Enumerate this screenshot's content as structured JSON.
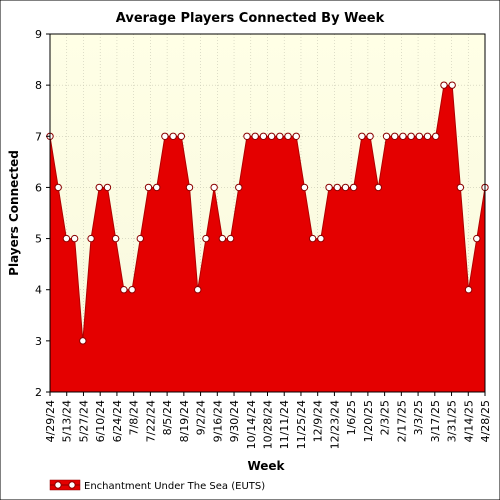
{
  "chart_data": {
    "type": "area",
    "title": "Average Players Connected By Week",
    "xlabel": "Week",
    "ylabel": "Players Connected",
    "ylim": [
      2,
      9
    ],
    "yticks": [
      2,
      3,
      4,
      5,
      6,
      7,
      8,
      9
    ],
    "x_tick_labels": [
      "4/29/24",
      "5/13/24",
      "5/27/24",
      "6/10/24",
      "6/24/24",
      "7/8/24",
      "7/22/24",
      "8/5/24",
      "8/19/24",
      "9/2/24",
      "9/16/24",
      "9/30/24",
      "10/14/24",
      "10/28/24",
      "11/11/24",
      "11/25/24",
      "12/9/24",
      "12/23/24",
      "1/6/25",
      "1/20/25",
      "2/3/25",
      "2/17/25",
      "3/3/25",
      "3/17/25",
      "3/31/25",
      "4/14/25",
      "4/28/25"
    ],
    "grid": true,
    "legend_position": "bottom-left",
    "colors": {
      "plot_background": "#fffee4",
      "area_fill": "#e40000",
      "marker_fill": "#ffffff",
      "marker_edge": "#8a0000"
    },
    "series": [
      {
        "name": "Enchantment Under The Sea (EUTS)",
        "values": [
          7,
          6,
          5,
          5,
          3,
          5,
          6,
          6,
          5,
          4,
          4,
          5,
          6,
          6,
          7,
          7,
          7,
          6,
          4,
          5,
          6,
          5,
          5,
          6,
          7,
          7,
          7,
          7,
          7,
          7,
          7,
          6,
          5,
          5,
          6,
          6,
          6,
          6,
          7,
          7,
          6,
          7,
          7,
          7,
          7,
          7,
          7,
          7,
          8,
          8,
          6,
          4,
          5,
          6
        ]
      }
    ]
  }
}
